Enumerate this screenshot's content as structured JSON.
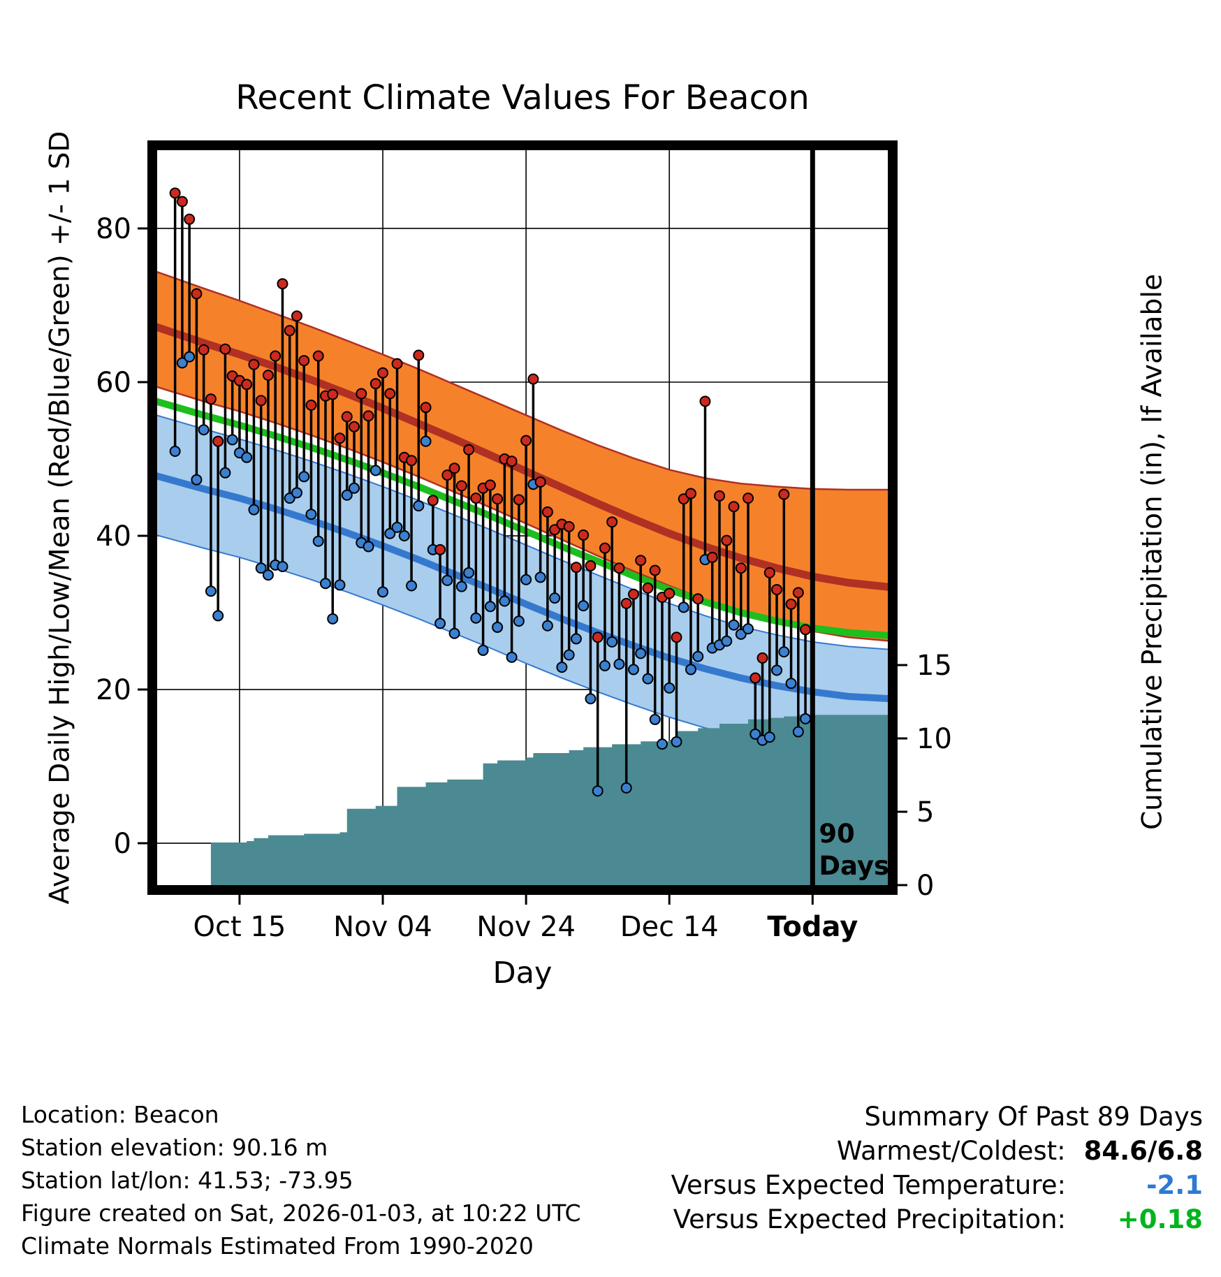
{
  "footer": {
    "lines": [
      "Location: Beacon",
      "Station elevation: 90.16 m",
      "Station lat/lon: 41.53; -73.95",
      "Figure created on Sat, 2026-01-03, at 10:22 UTC",
      "Climate Normals Estimated From 1990-2020"
    ]
  },
  "summary": {
    "title": "Summary Of Past 89 Days",
    "rows": [
      {
        "label": "Warmest/Coldest:",
        "value": "84.6/6.8",
        "color": "#000000"
      },
      {
        "label": "Versus Expected Temperature:",
        "value": "-2.1",
        "color": "#2d7ad4"
      },
      {
        "label": "Versus Expected Precipitation:",
        "value": "+0.18",
        "color": "#00b41e"
      }
    ]
  },
  "colors": {
    "high_band": "#f5822a",
    "high_line": "#b03024",
    "mean_line": "#1dbe1d",
    "low_band": "#a9cdec",
    "low_line": "#3579cf",
    "precip_fill": "#4b8a92",
    "high_dot": "#cc2a1e",
    "low_dot": "#3c80d0",
    "grid": "#000000",
    "frame": "#000000"
  },
  "chart_data": {
    "type": "line",
    "title": "Recent Climate Values For Beacon",
    "xlabel": "Day",
    "ylabel_left": "Average Daily High/Low/Mean (Red/Blue/Green) +/- 1 SD",
    "ylabel_right": "Cumulative Precipitation (in), If Available",
    "x_range": [
      -1.5,
      100.5
    ],
    "left_range": [
      -5.45,
      90.18
    ],
    "right_range": [
      0,
      50.1
    ],
    "left_ticks": [
      0,
      20,
      40,
      60,
      80
    ],
    "right_ticks": [
      0,
      5,
      10,
      15
    ],
    "x_ticks": [
      {
        "day": 10,
        "label": "Oct 15",
        "bold": false
      },
      {
        "day": 30,
        "label": "Nov 04",
        "bold": false
      },
      {
        "day": 50,
        "label": "Nov 24",
        "bold": false
      },
      {
        "day": 70,
        "label": "Dec 14",
        "bold": false
      },
      {
        "day": 90,
        "label": "Today",
        "bold": true
      }
    ],
    "grid": true,
    "legend": "none",
    "vline_day": 90,
    "vline_label": [
      "90",
      "Days"
    ],
    "daily": {
      "start_day": 1,
      "high": [
        84.6,
        83.5,
        81.2,
        71.5,
        64.2,
        57.8,
        52.3,
        64.3,
        60.8,
        60.2,
        59.7,
        62.3,
        57.6,
        60.9,
        63.4,
        72.8,
        66.7,
        68.6,
        62.8,
        57.0,
        63.4,
        58.2,
        58.4,
        52.7,
        55.5,
        54.2,
        58.5,
        55.6,
        59.8,
        61.2,
        58.5,
        62.4,
        50.2,
        49.8,
        63.5,
        56.7,
        44.6,
        38.2,
        47.9,
        48.8,
        46.5,
        51.2,
        44.9,
        46.2,
        46.6,
        44.8,
        50.0,
        49.7,
        44.7,
        52.4,
        60.4,
        47.0,
        43.1,
        40.8,
        41.5,
        41.2,
        35.9,
        40.1,
        36.1,
        26.8,
        38.4,
        41.8,
        35.8,
        31.2,
        32.4,
        36.8,
        33.2,
        35.5,
        32.0,
        32.5,
        26.8,
        44.8,
        45.5,
        31.8,
        57.5,
        37.2,
        45.2,
        39.4,
        43.8,
        35.8,
        44.9,
        21.5,
        24.1,
        35.2,
        33.0,
        45.4,
        31.1,
        32.6,
        27.8
      ],
      "low": [
        51.0,
        62.5,
        63.3,
        47.3,
        53.8,
        32.8,
        29.6,
        48.2,
        52.5,
        50.8,
        50.2,
        43.4,
        35.8,
        34.9,
        36.2,
        36.0,
        44.9,
        45.6,
        47.7,
        42.8,
        39.3,
        33.8,
        29.2,
        33.6,
        45.3,
        46.2,
        39.1,
        38.6,
        48.5,
        32.7,
        40.3,
        41.1,
        40.0,
        33.5,
        43.9,
        52.3,
        38.2,
        28.6,
        34.2,
        27.3,
        33.4,
        35.2,
        29.3,
        25.1,
        30.8,
        28.1,
        31.5,
        24.2,
        28.9,
        34.3,
        46.7,
        34.6,
        28.3,
        31.9,
        22.9,
        24.5,
        26.6,
        30.9,
        18.8,
        6.8,
        23.1,
        26.2,
        23.3,
        7.2,
        22.6,
        24.7,
        21.4,
        16.1,
        12.9,
        20.2,
        13.2,
        30.7,
        22.6,
        24.3,
        36.9,
        25.4,
        25.8,
        26.3,
        28.4,
        27.2,
        27.9,
        14.2,
        13.4,
        13.8,
        22.5,
        24.9,
        20.8,
        14.5,
        16.2
      ]
    },
    "normals": {
      "days": [
        -2,
        5,
        10,
        15,
        20,
        25,
        30,
        35,
        40,
        45,
        50,
        55,
        60,
        65,
        70,
        75,
        80,
        85,
        90,
        95,
        101
      ],
      "high_upper": [
        74.5,
        72.2,
        70.6,
        68.9,
        67.2,
        65.4,
        63.6,
        61.7,
        59.7,
        57.7,
        55.7,
        53.7,
        51.8,
        50.1,
        48.6,
        47.5,
        46.8,
        46.4,
        46.1,
        46.0,
        46.0
      ],
      "high_mean": [
        67.3,
        65.1,
        63.6,
        62.0,
        60.3,
        58.5,
        56.6,
        54.6,
        52.6,
        50.5,
        48.4,
        46.3,
        44.2,
        42.2,
        40.3,
        38.6,
        37.1,
        35.8,
        34.7,
        33.9,
        33.3
      ],
      "high_lower": [
        59.5,
        57.5,
        56.2,
        54.7,
        53.1,
        51.4,
        49.6,
        47.7,
        45.7,
        43.7,
        41.6,
        39.5,
        37.4,
        35.4,
        33.5,
        31.7,
        30.1,
        28.7,
        27.6,
        26.8,
        26.3
      ],
      "mean": [
        57.6,
        55.7,
        54.4,
        53.0,
        51.5,
        49.9,
        48.2,
        46.4,
        44.5,
        42.6,
        40.6,
        38.6,
        36.7,
        34.8,
        33.0,
        31.4,
        30.0,
        28.9,
        28.0,
        27.4,
        27.0
      ],
      "low_upper": [
        55.8,
        53.9,
        52.6,
        51.2,
        49.7,
        48.1,
        46.4,
        44.6,
        42.7,
        40.8,
        38.8,
        36.8,
        34.9,
        33.0,
        31.2,
        29.6,
        28.2,
        27.1,
        26.2,
        25.6,
        25.2
      ],
      "low_mean": [
        47.9,
        46.1,
        44.9,
        43.5,
        42.0,
        40.4,
        38.7,
        36.9,
        35.0,
        33.1,
        31.1,
        29.2,
        27.4,
        25.7,
        24.1,
        22.7,
        21.5,
        20.5,
        19.7,
        19.1,
        18.8
      ],
      "low_lower": [
        40.2,
        38.4,
        37.2,
        35.8,
        34.3,
        32.7,
        31.0,
        29.2,
        27.3,
        25.4,
        23.4,
        21.5,
        19.7,
        18.0,
        16.4,
        15.0,
        13.8,
        12.8,
        12.0,
        11.4,
        11.0
      ]
    },
    "precip_cumulative_steps": [
      [
        -1.5,
        0
      ],
      [
        6,
        0
      ],
      [
        6,
        2.9
      ],
      [
        11,
        3.0
      ],
      [
        12,
        3.2
      ],
      [
        14,
        3.4
      ],
      [
        19,
        3.5
      ],
      [
        24,
        3.6
      ],
      [
        25,
        5.2
      ],
      [
        29,
        5.4
      ],
      [
        32,
        6.7
      ],
      [
        36,
        7.0
      ],
      [
        39,
        7.2
      ],
      [
        44,
        8.3
      ],
      [
        46,
        8.5
      ],
      [
        50,
        8.7
      ],
      [
        51,
        9.0
      ],
      [
        56,
        9.2
      ],
      [
        58,
        9.4
      ],
      [
        62,
        9.6
      ],
      [
        66,
        9.8
      ],
      [
        70,
        9.9
      ],
      [
        71,
        10.5
      ],
      [
        74,
        10.7
      ],
      [
        77,
        11.0
      ],
      [
        81,
        11.3
      ],
      [
        84,
        11.4
      ],
      [
        86,
        11.5
      ],
      [
        88,
        11.6
      ],
      [
        100.5,
        11.6
      ]
    ]
  }
}
